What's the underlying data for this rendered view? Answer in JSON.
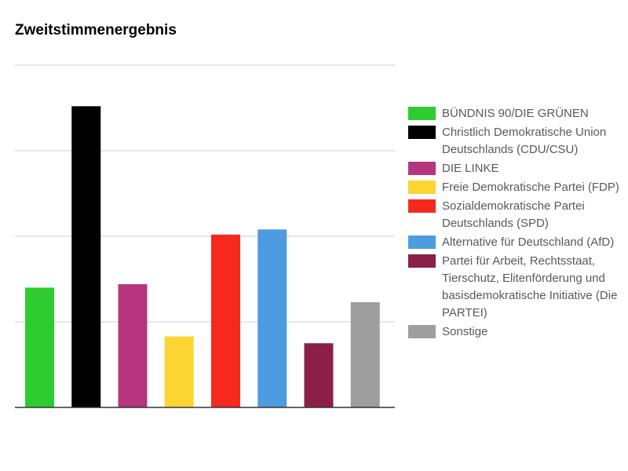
{
  "chart_data": {
    "type": "bar",
    "title": "Zweitstimmenergebnis",
    "xlabel": "",
    "ylabel": "",
    "ylim": [
      0,
      40
    ],
    "grid": true,
    "legend_position": "right",
    "categories": [
      "BÜNDNIS 90/DIE GRÜNEN",
      "Christlich Demokratische Union\nDeutschlands (CDU/CSU)",
      "DIE LINKE",
      "Freie Demokratische Partei (FDP)",
      "Sozialdemokratische Partei\nDeutschlands (SPD)",
      "Alternative für Deutschland (AfD)",
      "Partei für Arbeit, Rechtsstaat,\nTierschutz, Elitenförderung und\nbasisdemokratische Initiative (Die\nPARTEI)",
      "Sonstige"
    ],
    "values": [
      14.0,
      35.2,
      14.4,
      8.3,
      20.2,
      20.8,
      7.5,
      12.3
    ],
    "colors": [
      "#2ecc31",
      "#000000",
      "#b5367e",
      "#fdd532",
      "#f5291e",
      "#4f9be0",
      "#8b1f47",
      "#9e9e9e"
    ]
  }
}
